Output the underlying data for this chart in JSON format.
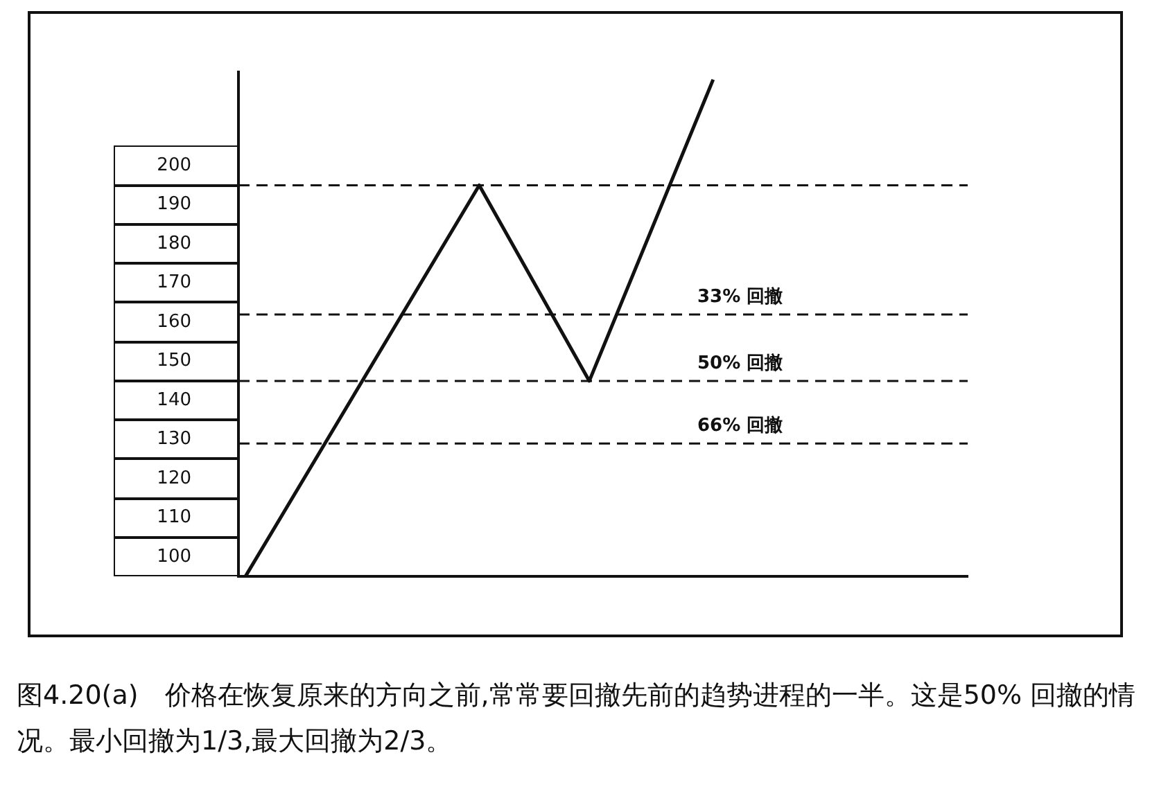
{
  "chart_data": {
    "type": "line",
    "categories": [
      null,
      null,
      null,
      null,
      null,
      null,
      null,
      null,
      null,
      null,
      null,
      null,
      null,
      null,
      null,
      null,
      null,
      null,
      null,
      null,
      null,
      null,
      null,
      null,
      null,
      null,
      null,
      null,
      null,
      null,
      null,
      null,
      null,
      null,
      null,
      null,
      null,
      null,
      null,
      null,
      null,
      null,
      null,
      null,
      null,
      null,
      null,
      null,
      null,
      null,
      null,
      null,
      null
    ],
    "series": [
      {
        "color": "#111111",
        "values": [
          95,
          null,
          null,
          null,
          null,
          null,
          null,
          null,
          null,
          null,
          null,
          null,
          null,
          null,
          null,
          null,
          null,
          195,
          null,
          null,
          null,
          null,
          null,
          null,
          null,
          145,
          null,
          null,
          null,
          null,
          null,
          null,
          null,
          null,
          222,
          null,
          null,
          null,
          null,
          null,
          null,
          null,
          null,
          null,
          null,
          null,
          null,
          null,
          null,
          null,
          null,
          null,
          null
        ]
      }
    ],
    "ylim": [
      95,
      224
    ],
    "yticks": [
      100,
      110,
      120,
      130,
      140,
      150,
      160,
      170,
      180,
      190,
      200
    ],
    "grid": false,
    "legend": false,
    "marker": "none",
    "line_style": "solid",
    "ref_lines": [
      {
        "axis": "y",
        "value": 195,
        "line_style": "dashed",
        "color": "#111111"
      },
      {
        "axis": "y",
        "value": 162,
        "label": "33% 回撤",
        "line_style": "dashed",
        "color": "#111111"
      },
      {
        "axis": "y",
        "value": 145,
        "label": "50% 回撤",
        "line_style": "dashed",
        "color": "#111111"
      },
      {
        "axis": "y",
        "value": 129,
        "label": "66% 回撤",
        "line_style": "dashed",
        "color": "#111111"
      }
    ],
    "annotations": [
      "图4.20(a)　价格在恢复原来的方向之前,常常要回撤先前的趋势进程的一半。这是50% 回撤的情况。最小回撤为1/3,最大回撤为2/3。"
    ]
  }
}
